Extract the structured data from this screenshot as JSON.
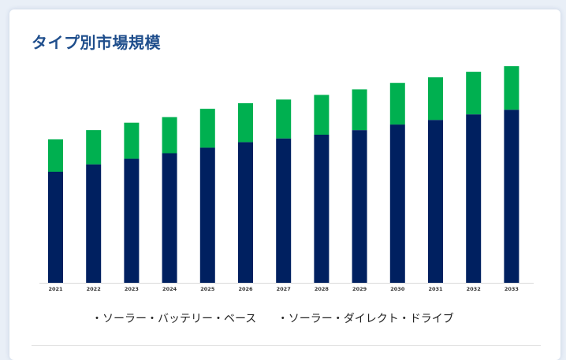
{
  "title": "タイプ別市場規模",
  "colors": {
    "series_1": "#002060",
    "series_2": "#00b050"
  },
  "chart_data": {
    "type": "bar",
    "stacked": true,
    "categories": [
      "2021",
      "2022",
      "2023",
      "2024",
      "2025",
      "2026",
      "2027",
      "2028",
      "2029",
      "2030",
      "2031",
      "2032",
      "2033"
    ],
    "series": [
      {
        "name": "・ソーラー・バッテリー・ベース",
        "values": [
          120,
          128,
          134,
          140,
          146,
          152,
          156,
          160,
          165,
          171,
          176,
          182,
          187
        ],
        "color": "#002060"
      },
      {
        "name": "・ソーラー・ダイレクト・ドライブ",
        "values": [
          35,
          37,
          39,
          39,
          42,
          42,
          42,
          43,
          44,
          45,
          46,
          46,
          47
        ],
        "color": "#00b050"
      }
    ],
    "ylim": [
      0,
      240
    ],
    "legend_position": "bottom",
    "grid": false,
    "xlabel": "",
    "ylabel": ""
  }
}
